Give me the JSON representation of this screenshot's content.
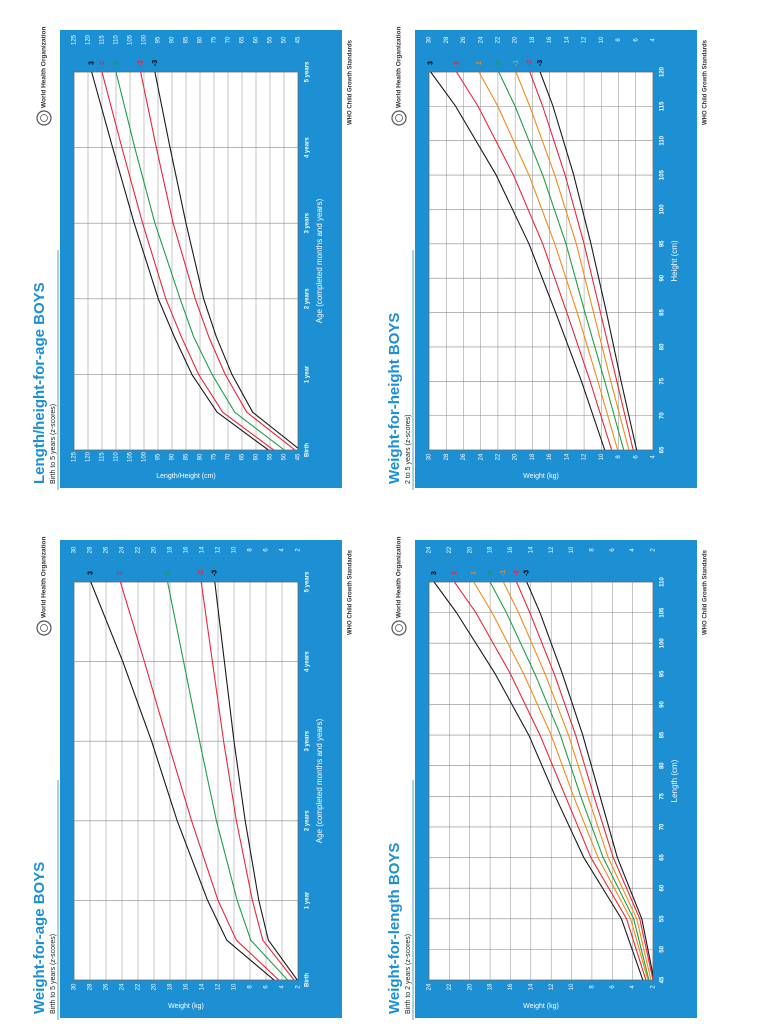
{
  "chart_data": [
    {
      "type": "line",
      "title": "Length/height-for-age BOYS",
      "subtitle": "Birth to 5 years (z-scores)",
      "x_label": "Age (completed months and years)",
      "y_label": "Length/Height (cm)",
      "footer": "WHO Child Growth Standards",
      "organization": "World Health Organization",
      "x": [
        0,
        6,
        12,
        18,
        24,
        36,
        48,
        60
      ],
      "xlim": [
        0,
        60
      ],
      "xticks": [
        {
          "value": 0,
          "label": "Birth"
        },
        {
          "value": 12,
          "label": "1 year"
        },
        {
          "value": 24,
          "label": "2 years"
        },
        {
          "value": 36,
          "label": "3 years"
        },
        {
          "value": 48,
          "label": "4 years"
        },
        {
          "value": 60,
          "label": "5 years"
        }
      ],
      "ylim": [
        45,
        125
      ],
      "yticks": [
        45,
        50,
        55,
        60,
        65,
        70,
        75,
        80,
        85,
        90,
        95,
        100,
        105,
        110,
        115,
        120,
        125
      ],
      "series": [
        {
          "name": "3",
          "color": "#1a1a1a",
          "values": [
            55.6,
            73.9,
            82.9,
            89.2,
            94.9,
            103.5,
            111.2,
            118.7
          ]
        },
        {
          "name": "2",
          "color": "#e8273a",
          "values": [
            53.7,
            71.9,
            80.5,
            86.7,
            92.2,
            100.5,
            107.9,
            115.0
          ]
        },
        {
          "name": "0",
          "color": "#1f9e4a",
          "values": [
            49.9,
            67.6,
            75.7,
            82.3,
            87.1,
            96.1,
            103.3,
            110.0
          ]
        },
        {
          "name": "-2",
          "color": "#e8273a",
          "values": [
            46.1,
            63.3,
            71.0,
            76.9,
            81.7,
            89.6,
            95.6,
            101.2
          ]
        },
        {
          "name": "-3",
          "color": "#1a1a1a",
          "values": [
            44.2,
            61.2,
            68.6,
            74.2,
            78.7,
            85.0,
            90.7,
            96.1
          ]
        }
      ]
    },
    {
      "type": "line",
      "title": "Weight-for-height BOYS",
      "subtitle": "2 to 5 years (z-scores)",
      "x_label": "Height (cm)",
      "y_label": "Weight (kg)",
      "footer": "WHO Child Growth Standards",
      "organization": "World Health Organization",
      "x": [
        65,
        75,
        85,
        95,
        105,
        115,
        120
      ],
      "xlim": [
        65,
        120
      ],
      "xticks": [
        65,
        70,
        75,
        80,
        85,
        90,
        95,
        100,
        105,
        110,
        115,
        120
      ],
      "ylim": [
        4,
        30
      ],
      "yticks": [
        4,
        6,
        8,
        10,
        12,
        14,
        16,
        18,
        20,
        22,
        24,
        26,
        28,
        30
      ],
      "series": [
        {
          "name": "3",
          "color": "#1a1a1a",
          "values": [
            9.6,
            12.3,
            15.3,
            18.4,
            22.2,
            26.9,
            29.8
          ]
        },
        {
          "name": "2",
          "color": "#e8273a",
          "values": [
            8.8,
            11.3,
            14.0,
            16.8,
            20.2,
            24.3,
            26.8
          ]
        },
        {
          "name": "1",
          "color": "#f08a1c",
          "values": [
            8.1,
            10.4,
            12.8,
            15.4,
            18.4,
            22.0,
            24.2
          ]
        },
        {
          "name": "0",
          "color": "#1f9e4a",
          "values": [
            7.4,
            9.6,
            11.9,
            14.1,
            16.8,
            20.0,
            21.9
          ]
        },
        {
          "name": "-1",
          "color": "#f08a1c",
          "values": [
            6.8,
            8.9,
            10.9,
            12.9,
            15.4,
            18.3,
            19.9
          ]
        },
        {
          "name": "-2",
          "color": "#e8273a",
          "values": [
            6.3,
            8.2,
            10.1,
            12.0,
            14.2,
            16.8,
            18.3
          ]
        },
        {
          "name": "-3",
          "color": "#1a1a1a",
          "values": [
            5.9,
            7.7,
            9.4,
            11.2,
            13.2,
            15.6,
            17.1
          ]
        }
      ]
    },
    {
      "type": "line",
      "title": "Weight-for-age BOYS",
      "subtitle": "Birth to 5 years (z-scores)",
      "x_label": "Age (completed months and years)",
      "y_label": "Weight (kg)",
      "footer": "WHO Child Growth Standards",
      "organization": "World Health Organization",
      "x": [
        0,
        6,
        12,
        24,
        36,
        48,
        60
      ],
      "xlim": [
        0,
        60
      ],
      "xticks": [
        {
          "value": 0,
          "label": "Birth"
        },
        {
          "value": 12,
          "label": "1 year"
        },
        {
          "value": 24,
          "label": "2 years"
        },
        {
          "value": 36,
          "label": "3 years"
        },
        {
          "value": 48,
          "label": "4 years"
        },
        {
          "value": 60,
          "label": "5 years"
        }
      ],
      "ylim": [
        2,
        30
      ],
      "yticks": [
        2,
        4,
        6,
        8,
        10,
        12,
        14,
        16,
        18,
        20,
        22,
        24,
        26,
        28,
        30
      ],
      "series": [
        {
          "name": "3",
          "color": "#1a1a1a",
          "values": [
            5.0,
            10.9,
            13.3,
            17.1,
            20.3,
            23.9,
            27.9
          ]
        },
        {
          "name": "2",
          "color": "#e8273a",
          "values": [
            4.4,
            9.7,
            12.0,
            15.3,
            18.3,
            21.2,
            24.2
          ]
        },
        {
          "name": "0",
          "color": "#1f9e4a",
          "values": [
            3.3,
            7.9,
            9.6,
            12.2,
            14.3,
            16.3,
            18.3
          ]
        },
        {
          "name": "-2",
          "color": "#e8273a",
          "values": [
            2.5,
            6.4,
            7.7,
            9.7,
            11.3,
            12.7,
            14.1
          ]
        },
        {
          "name": "-3",
          "color": "#1a1a1a",
          "values": [
            2.1,
            5.7,
            6.9,
            8.6,
            10.0,
            11.2,
            12.4
          ]
        }
      ]
    },
    {
      "type": "line",
      "title": "Weight-for-length BOYS",
      "subtitle": "Birth to 2 years (z-scores)",
      "x_label": "Length (cm)",
      "y_label": "Weight (kg)",
      "footer": "WHO Child Growth Standards",
      "organization": "World Health Organization",
      "x": [
        45,
        55,
        65,
        75,
        85,
        95,
        105,
        110
      ],
      "xlim": [
        45,
        110
      ],
      "xticks": [
        45,
        50,
        55,
        60,
        65,
        70,
        75,
        80,
        85,
        90,
        95,
        100,
        105,
        110
      ],
      "ylim": [
        2,
        24
      ],
      "yticks": [
        2,
        4,
        6,
        8,
        10,
        12,
        14,
        16,
        18,
        20,
        22,
        24
      ],
      "series": [
        {
          "name": "3",
          "color": "#1a1a1a",
          "values": [
            3.0,
            5.1,
            8.8,
            11.6,
            14.2,
            17.5,
            21.3,
            23.5
          ]
        },
        {
          "name": "2",
          "color": "#e8273a",
          "values": [
            2.7,
            4.6,
            8.1,
            10.6,
            13.1,
            16.0,
            19.4,
            21.5
          ]
        },
        {
          "name": "1",
          "color": "#f08a1c",
          "values": [
            2.5,
            4.2,
            7.4,
            9.8,
            12.0,
            14.7,
            17.8,
            19.6
          ]
        },
        {
          "name": "0",
          "color": "#1f9e4a",
          "values": [
            2.4,
            3.9,
            6.9,
            9.1,
            11.1,
            13.6,
            16.4,
            18.0
          ]
        },
        {
          "name": "-1",
          "color": "#f08a1c",
          "values": [
            2.2,
            3.6,
            6.4,
            8.4,
            10.3,
            12.6,
            15.2,
            16.7
          ]
        },
        {
          "name": "-2",
          "color": "#e8273a",
          "values": [
            2.0,
            3.3,
            5.9,
            7.8,
            9.6,
            11.7,
            14.1,
            15.4
          ]
        },
        {
          "name": "-3",
          "color": "#1a1a1a",
          "values": [
            1.9,
            3.1,
            5.5,
            7.2,
            8.9,
            10.9,
            13.1,
            14.4
          ]
        }
      ]
    }
  ]
}
